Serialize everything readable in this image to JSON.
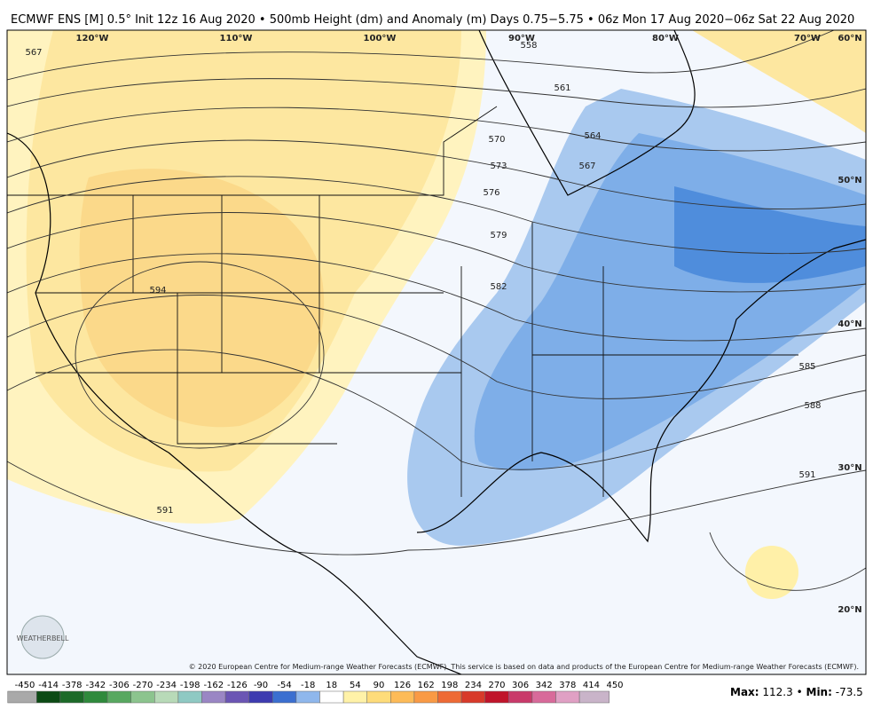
{
  "header": {
    "title": "ECMWF ENS [M] 0.5° Init 12z 16 Aug 2020 • 500mb Height (dm) and Anomaly (m) Days 0.75−5.75 • 06z Mon 17 Aug 2020−06z Sat 22 Aug 2020"
  },
  "graticule": [
    "120°W",
    "110°W",
    "100°W",
    "90°W",
    "80°W",
    "70°W",
    "60°N",
    "50°N",
    "40°N",
    "30°N",
    "20°N"
  ],
  "contour_labels": [
    "567",
    "558",
    "561",
    "564",
    "567",
    "570",
    "573",
    "576",
    "579",
    "582",
    "585",
    "588",
    "591",
    "594",
    "591"
  ],
  "logo": "WEATHERBELL",
  "credit": "© 2020 European Centre for Medium-range Weather Forecasts (ECMWF). This service is based on data and products of the European Centre for Medium-range Weather Forecasts (ECMWF).",
  "colorbar": {
    "ticks": [
      -450,
      -414,
      -378,
      -342,
      -306,
      -270,
      -234,
      -198,
      -162,
      -126,
      -90,
      -54,
      -18,
      18,
      54,
      90,
      126,
      162,
      198,
      234,
      270,
      306,
      342,
      378,
      414,
      450
    ]
  },
  "stats": {
    "max_label": "Max:",
    "max": 112.3,
    "separator": "•",
    "min_label": "Min:",
    "min": -73.5
  }
}
